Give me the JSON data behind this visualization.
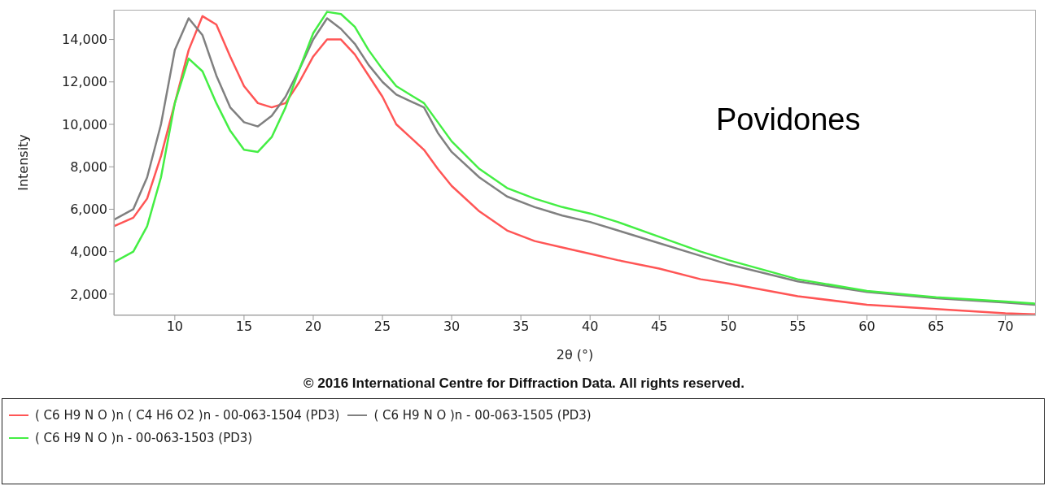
{
  "chart_data": {
    "type": "line",
    "xlabel": "2θ (°)",
    "ylabel": "Intensity",
    "annotations": [
      "Povidones",
      "© 2016 International Centre for Diffraction Data. All rights reserved."
    ],
    "x": [
      5.6,
      7,
      8,
      9,
      10,
      11,
      12,
      13,
      14,
      15,
      16,
      17,
      18,
      19,
      20,
      21,
      22,
      23,
      24,
      25,
      26,
      27,
      28,
      29,
      30,
      32,
      34,
      36,
      38,
      40,
      42,
      45,
      48,
      50,
      55,
      60,
      65,
      70,
      72.2
    ],
    "series": [
      {
        "name": "( C6 H9 N O )n ( C4 H6 O2 )n - 00-063-1504 (PD3)",
        "color": "#ff5555",
        "values": [
          5200,
          5600,
          6500,
          8500,
          11000,
          13500,
          15100,
          14700,
          13200,
          11800,
          11000,
          10800,
          11000,
          12000,
          13200,
          14000,
          14000,
          13300,
          12300,
          11300,
          10000,
          9400,
          8800,
          7900,
          7100,
          5900,
          5000,
          4500,
          4200,
          3900,
          3600,
          3200,
          2700,
          2500,
          1900,
          1500,
          1300,
          1100,
          1050
        ]
      },
      {
        "name": "( C6 H9 N O )n - 00-063-1505 (PD3)",
        "color": "#808080",
        "values": [
          5500,
          6000,
          7500,
          10000,
          13500,
          15000,
          14200,
          12300,
          10800,
          10100,
          9900,
          10400,
          11300,
          12600,
          14000,
          15000,
          14500,
          13800,
          12800,
          12000,
          11400,
          11100,
          10800,
          9600,
          8700,
          7500,
          6600,
          6100,
          5700,
          5400,
          5000,
          4400,
          3800,
          3400,
          2600,
          2100,
          1800,
          1600,
          1500
        ]
      },
      {
        "name": "( C6 H9 N O )n - 00-063-1503 (PD3)",
        "color": "#44ee44",
        "values": [
          3500,
          4000,
          5200,
          7500,
          11000,
          13100,
          12500,
          11000,
          9700,
          8800,
          8700,
          9400,
          10800,
          12600,
          14300,
          15300,
          15200,
          14600,
          13500,
          12600,
          11800,
          11400,
          11000,
          10100,
          9200,
          7900,
          7000,
          6500,
          6100,
          5800,
          5400,
          4700,
          4000,
          3600,
          2700,
          2150,
          1850,
          1650,
          1550
        ]
      }
    ],
    "xlim": [
      5.6,
      72.2
    ],
    "xticks": [
      10,
      15,
      20,
      25,
      30,
      35,
      40,
      45,
      50,
      55,
      60,
      65,
      70
    ],
    "ylim": [
      1000,
      15400
    ],
    "yticks": [
      {
        "value": 2000,
        "label": "2,000"
      },
      {
        "value": 4000,
        "label": "4,000"
      },
      {
        "value": 6000,
        "label": "6,000"
      },
      {
        "value": 8000,
        "label": "8,000"
      },
      {
        "value": 10000,
        "label": "10,000"
      },
      {
        "value": 12000,
        "label": "12,000"
      },
      {
        "value": 14000,
        "label": "14,000"
      }
    ],
    "grid": false,
    "legend": "bottom",
    "marker": "none",
    "line_style": "solid"
  }
}
